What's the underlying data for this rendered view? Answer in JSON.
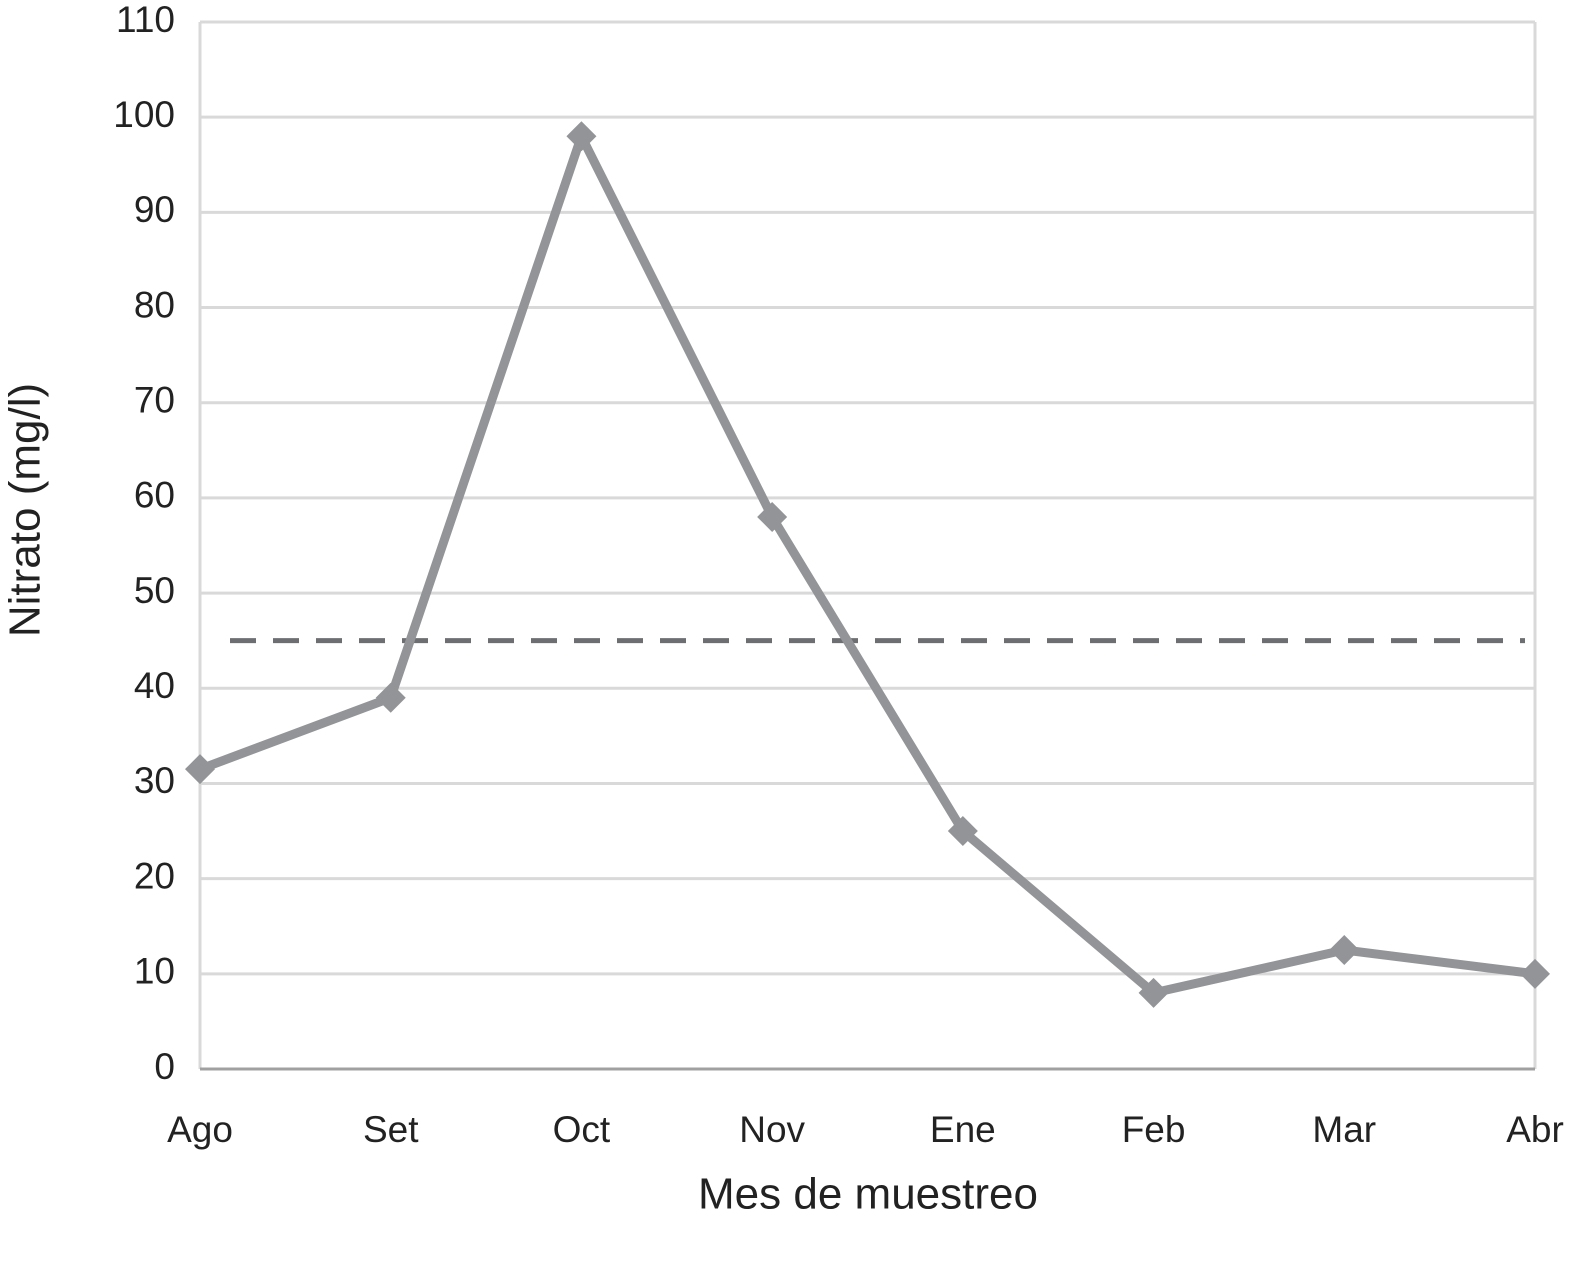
{
  "chart_data": {
    "type": "line",
    "x_label": "Mes de muestreo",
    "y_label": "Nitrato (mg/l)",
    "categories": [
      "Ago",
      "Set",
      "Oct",
      "Nov",
      "Ene",
      "Feb",
      "Mar",
      "Abr"
    ],
    "values": [
      31.5,
      39,
      98,
      58,
      25,
      8,
      12.5,
      10
    ],
    "color": "#929497",
    "ylim": [
      0,
      110
    ],
    "yticks": [
      0,
      10,
      20,
      30,
      40,
      50,
      60,
      70,
      80,
      90,
      100,
      110
    ],
    "grid": true,
    "hlines": [
      {
        "value": 45,
        "color": "#6d6e71",
        "dash": true
      }
    ]
  }
}
